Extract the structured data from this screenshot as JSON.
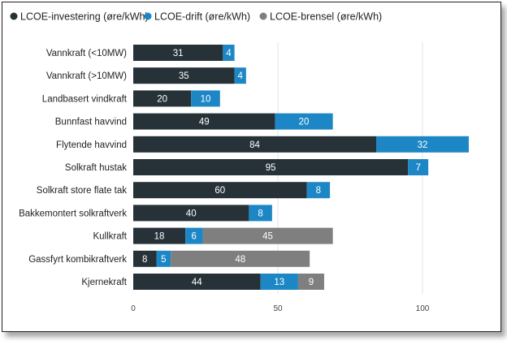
{
  "chart_data": {
    "type": "bar",
    "orientation": "horizontal",
    "stacked": true,
    "categories": [
      "Vannkraft (<10MW)",
      "Vannkraft (>10MW)",
      "Landbasert vindkraft",
      "Bunnfast havvind",
      "Flytende havvind",
      "Solkraft hustak",
      "Solkraft store flate tak",
      "Bakkemontert solkraftverk",
      "Kullkraft",
      "Gassfyrt kombikraftverk",
      "Kjernekraft"
    ],
    "series": [
      {
        "name": "LCOE-investering (øre/kWh)",
        "color": "#263238",
        "values": [
          31,
          35,
          20,
          49,
          84,
          95,
          60,
          40,
          18,
          8,
          44
        ]
      },
      {
        "name": "LCOE-drift (øre/kWh)",
        "color": "#1d87c6",
        "values": [
          4,
          4,
          10,
          20,
          32,
          7,
          8,
          8,
          6,
          5,
          13
        ]
      },
      {
        "name": "LCOE-brensel (øre/kWh)",
        "color": "#7f7f7f",
        "values": [
          0,
          0,
          0,
          0,
          0,
          0,
          0,
          0,
          45,
          48,
          9
        ]
      }
    ],
    "xticks": [
      0,
      50,
      100
    ],
    "xlim": [
      0,
      125
    ],
    "legend_position": "top-left",
    "grid": true
  }
}
